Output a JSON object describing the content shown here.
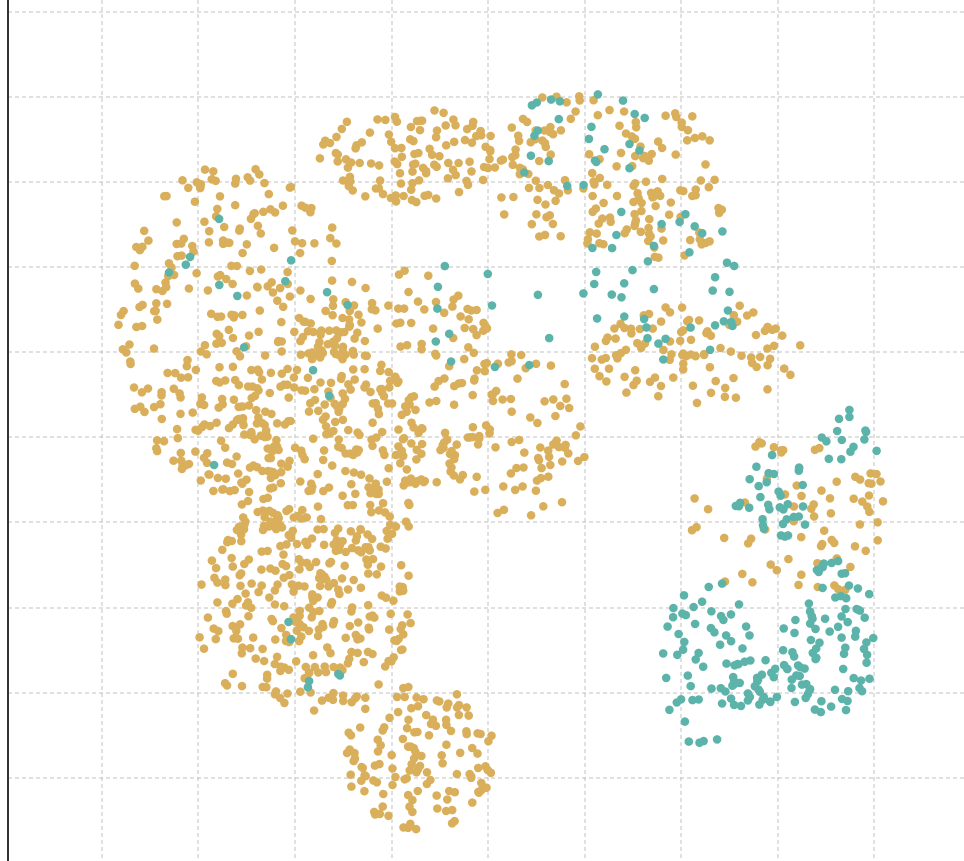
{
  "chart_data": {
    "type": "scatter",
    "title": "",
    "xlabel": "",
    "ylabel": "",
    "xlim": [
      0,
      10
    ],
    "ylim": [
      0,
      10
    ],
    "grid": true,
    "legend": "none",
    "series": [
      {
        "color": "#D9AF5B",
        "regions": [
          {
            "cx": 2.4,
            "cy": 6.2,
            "rx": 1.25,
            "ry": 1.95,
            "n": 300
          },
          {
            "cx": 3.3,
            "cy": 4.7,
            "rx": 1.1,
            "ry": 1.6,
            "n": 240
          },
          {
            "cx": 3.1,
            "cy": 2.9,
            "rx": 1.2,
            "ry": 1.2,
            "n": 250
          },
          {
            "cx": 4.3,
            "cy": 1.2,
            "rx": 0.8,
            "ry": 0.85,
            "n": 130
          },
          {
            "cx": 4.2,
            "cy": 5.6,
            "rx": 1.0,
            "ry": 1.3,
            "n": 130
          },
          {
            "cx": 4.2,
            "cy": 8.2,
            "rx": 0.95,
            "ry": 0.55,
            "n": 110
          },
          {
            "cx": 5.3,
            "cy": 4.9,
            "rx": 0.75,
            "ry": 1.0,
            "n": 80
          },
          {
            "cx": 5.9,
            "cy": 8.0,
            "rx": 0.9,
            "ry": 0.95,
            "n": 110
          },
          {
            "cx": 7.0,
            "cy": 7.8,
            "rx": 0.5,
            "ry": 0.9,
            "n": 60
          },
          {
            "cx": 7.2,
            "cy": 5.9,
            "rx": 1.15,
            "ry": 0.6,
            "n": 100
          },
          {
            "cx": 8.1,
            "cy": 3.9,
            "rx": 1.0,
            "ry": 1.0,
            "n": 55
          },
          {
            "cx": 8.9,
            "cy": 4.0,
            "rx": 0.35,
            "ry": 0.6,
            "n": 15
          }
        ]
      },
      {
        "color": "#5CB3AA",
        "regions": [
          {
            "cx": 7.3,
            "cy": 2.3,
            "rx": 0.5,
            "ry": 1.0,
            "n": 50
          },
          {
            "cx": 7.9,
            "cy": 2.05,
            "rx": 0.55,
            "ry": 0.3,
            "n": 45
          },
          {
            "cx": 8.6,
            "cy": 2.6,
            "rx": 0.5,
            "ry": 0.9,
            "n": 75
          },
          {
            "cx": 8.0,
            "cy": 4.2,
            "rx": 0.4,
            "ry": 0.55,
            "n": 35
          },
          {
            "cx": 8.8,
            "cy": 4.9,
            "rx": 0.35,
            "ry": 0.35,
            "n": 15
          },
          {
            "cx": 6.9,
            "cy": 6.7,
            "rx": 0.9,
            "ry": 0.9,
            "n": 40
          },
          {
            "cx": 6.0,
            "cy": 8.2,
            "rx": 0.8,
            "ry": 0.8,
            "n": 25
          },
          {
            "cx": 4.8,
            "cy": 6.2,
            "rx": 0.9,
            "ry": 0.9,
            "n": 12
          },
          {
            "cx": 2.5,
            "cy": 6.0,
            "rx": 1.2,
            "ry": 1.6,
            "n": 14
          },
          {
            "cx": 3.2,
            "cy": 3.0,
            "rx": 1.0,
            "ry": 1.2,
            "n": 6
          }
        ]
      }
    ]
  }
}
